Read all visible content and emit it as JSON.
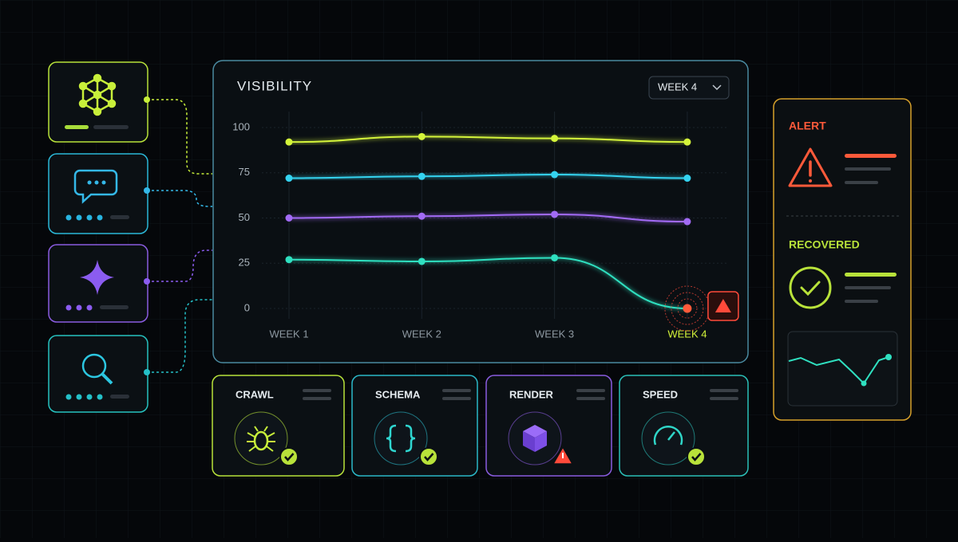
{
  "panel": {
    "title": "VISIBILITY",
    "dropdown": "WEEK 4"
  },
  "chart_data": {
    "type": "line",
    "categories": [
      "WEEK 1",
      "WEEK 2",
      "WEEK 3",
      "WEEK 4"
    ],
    "series": [
      {
        "color": "#d4f43a",
        "values": [
          92,
          95,
          94,
          92
        ]
      },
      {
        "color": "#34d3f0",
        "values": [
          72,
          73,
          74,
          72
        ]
      },
      {
        "color": "#a26bf5",
        "values": [
          50,
          51,
          52,
          48
        ]
      },
      {
        "color": "#2fe0c0",
        "values": [
          27,
          26,
          28,
          0
        ]
      }
    ],
    "ylim": [
      0,
      100
    ],
    "yticks": [
      0,
      25,
      50,
      75,
      100
    ],
    "grid": true
  },
  "cards": [
    "CRAWL",
    "SCHEMA",
    "RENDER",
    "SPEED"
  ],
  "status": {
    "alert": "ALERT",
    "recovered": "RECOVERED"
  }
}
